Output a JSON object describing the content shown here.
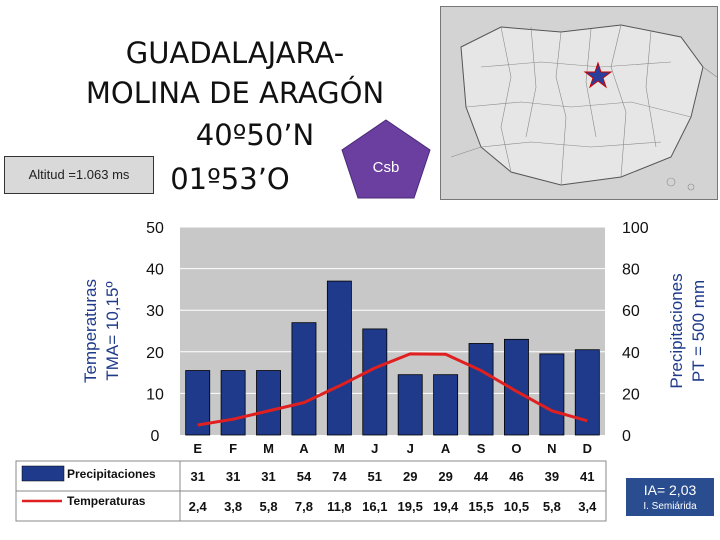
{
  "header": {
    "title_lines": [
      "GUADALAJARA-",
      "MOLINA DE ARAGÓN",
      "40º50’N",
      "01º53’O"
    ],
    "altitude": "Altitud =1.063 ms",
    "climate_code": "Csb"
  },
  "index": {
    "ia": "IA= 2,03",
    "classification": "I. Semiárida"
  },
  "colors": {
    "bars": "#1f3a8a",
    "line": "#e02020",
    "plot_bg": "#c8c8c8",
    "map_star": "#2a3f9a"
  },
  "chart_data": {
    "type": "bar",
    "categories": [
      "E",
      "F",
      "M",
      "A",
      "M",
      "J",
      "J",
      "A",
      "S",
      "O",
      "N",
      "D"
    ],
    "series": [
      {
        "name": "Precipitaciones",
        "type": "bar",
        "axis": "right",
        "values": [
          31,
          31,
          31,
          54,
          74,
          51,
          29,
          29,
          44,
          46,
          39,
          41
        ]
      },
      {
        "name": "Temperaturas",
        "type": "line",
        "axis": "left",
        "values": [
          2.4,
          3.8,
          5.8,
          7.8,
          11.8,
          16.1,
          19.5,
          19.4,
          15.5,
          10.5,
          5.8,
          3.4
        ]
      }
    ],
    "table_rows": {
      "precip": [
        "31",
        "31",
        "31",
        "54",
        "74",
        "51",
        "29",
        "29",
        "44",
        "46",
        "39",
        "41"
      ],
      "temp": [
        "2,4",
        "3,8",
        "5,8",
        "7,8",
        "11,8",
        "16,1",
        "19,5",
        "19,4",
        "15,5",
        "10,5",
        "5,8",
        "3,4"
      ]
    },
    "ylabel_left": [
      "Temperaturas",
      "TMA= 10,15º"
    ],
    "ylabel_right": [
      "Precipitaciones",
      "PT = 500 mm"
    ],
    "ylim_left": [
      0,
      50
    ],
    "ylim_right": [
      0,
      100
    ],
    "yticks_left": [
      0,
      10,
      20,
      30,
      40,
      50
    ],
    "yticks_right": [
      0,
      20,
      40,
      60,
      80,
      100
    ],
    "grid": true,
    "legend": "bottom-left table"
  }
}
